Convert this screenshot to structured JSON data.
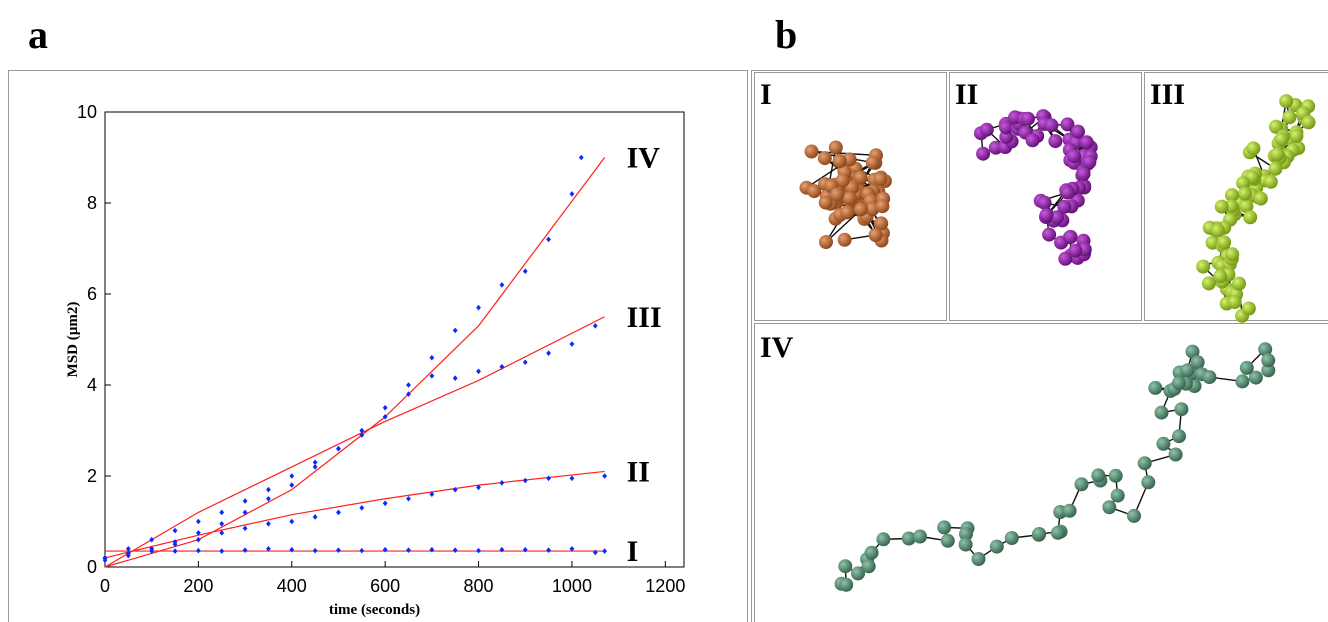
{
  "panel_a_label": "a",
  "chart_data": {
    "type": "scatter",
    "xlabel": "time (seconds)",
    "ylabel": "MSD (µm2)",
    "xlim": [
      0,
      1240
    ],
    "ylim": [
      0,
      10
    ],
    "xticks": [
      0,
      200,
      400,
      600,
      800,
      1000,
      1200
    ],
    "yticks": [
      0,
      2,
      4,
      6,
      8,
      10
    ],
    "series": [
      {
        "name": "I",
        "color": "#0a2bff",
        "x": [
          0,
          50,
          100,
          150,
          200,
          250,
          300,
          350,
          400,
          450,
          500,
          550,
          600,
          650,
          700,
          750,
          800,
          850,
          900,
          950,
          1000,
          1050,
          1070
        ],
        "values": [
          0.2,
          0.3,
          0.35,
          0.35,
          0.36,
          0.35,
          0.37,
          0.4,
          0.38,
          0.36,
          0.37,
          0.36,
          0.38,
          0.37,
          0.38,
          0.37,
          0.36,
          0.38,
          0.38,
          0.37,
          0.4,
          0.32,
          0.35
        ]
      },
      {
        "name": "II",
        "color": "#0a2bff",
        "x": [
          0,
          50,
          100,
          150,
          200,
          250,
          300,
          350,
          400,
          450,
          500,
          550,
          600,
          650,
          700,
          750,
          800,
          850,
          900,
          950,
          1000,
          1070
        ],
        "values": [
          0.2,
          0.3,
          0.4,
          0.5,
          0.6,
          0.75,
          0.85,
          0.95,
          1.0,
          1.1,
          1.2,
          1.3,
          1.4,
          1.5,
          1.6,
          1.7,
          1.75,
          1.85,
          1.9,
          1.95,
          1.95,
          2.0
        ]
      },
      {
        "name": "III",
        "color": "#0a2bff",
        "x": [
          0,
          50,
          100,
          150,
          200,
          250,
          300,
          350,
          400,
          450,
          500,
          550,
          600,
          650,
          700,
          750,
          800,
          850,
          900,
          950,
          1000,
          1050
        ],
        "values": [
          0.2,
          0.4,
          0.6,
          0.8,
          1.0,
          1.2,
          1.45,
          1.7,
          2.0,
          2.3,
          2.6,
          2.9,
          3.3,
          3.8,
          4.2,
          4.15,
          4.3,
          4.4,
          4.5,
          4.7,
          4.9,
          5.3
        ]
      },
      {
        "name": "IV",
        "color": "#0a2bff",
        "x": [
          0,
          50,
          100,
          150,
          200,
          250,
          300,
          350,
          400,
          450,
          500,
          550,
          600,
          650,
          700,
          750,
          800,
          850,
          900,
          950,
          1000,
          1020
        ],
        "values": [
          0.15,
          0.25,
          0.4,
          0.55,
          0.75,
          0.95,
          1.2,
          1.5,
          1.8,
          2.2,
          2.6,
          3.0,
          3.5,
          4.0,
          4.6,
          5.2,
          5.7,
          6.2,
          6.5,
          7.2,
          8.2,
          9.0
        ]
      }
    ],
    "fits": [
      {
        "color": "#ff2020",
        "x": [
          0,
          1070
        ],
        "values": [
          0.35,
          0.35
        ]
      },
      {
        "color": "#ff2020",
        "x": [
          0,
          200,
          400,
          600,
          800,
          1070
        ],
        "values": [
          0.2,
          0.7,
          1.15,
          1.5,
          1.8,
          2.1
        ]
      },
      {
        "color": "#ff2020",
        "x": [
          0,
          200,
          400,
          600,
          800,
          1070
        ],
        "values": [
          0.0,
          1.2,
          2.2,
          3.2,
          4.1,
          5.5
        ]
      },
      {
        "color": "#ff2020",
        "x": [
          0,
          200,
          400,
          600,
          800,
          1070
        ],
        "values": [
          0.0,
          0.6,
          1.7,
          3.3,
          5.3,
          9.0
        ]
      }
    ]
  },
  "panel_b": {
    "label": "b",
    "panels": [
      "I",
      "II",
      "III",
      "IV"
    ]
  }
}
